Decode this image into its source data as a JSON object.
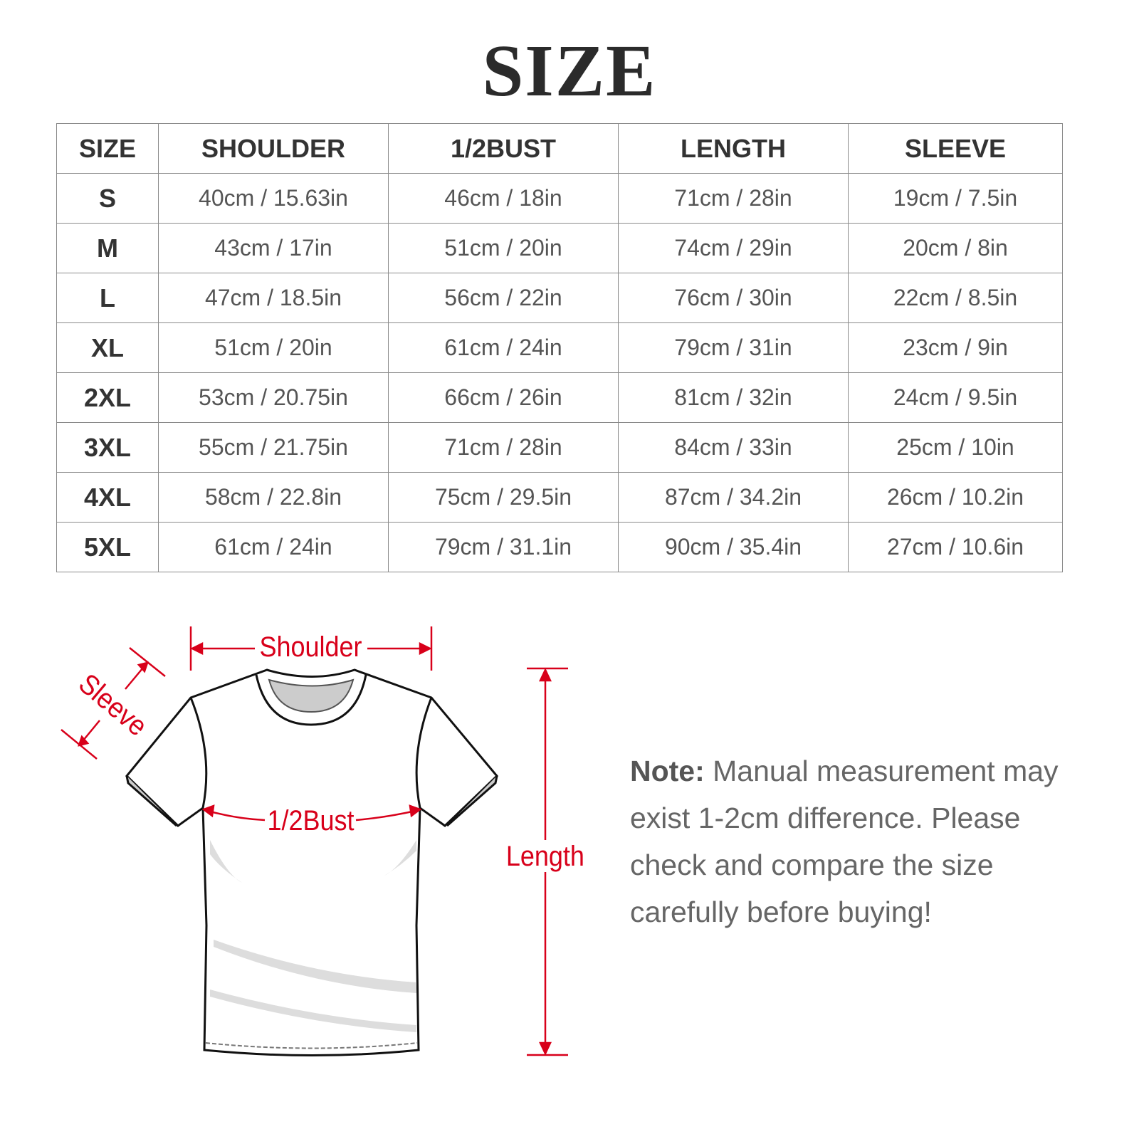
{
  "title": "SIZE",
  "table": {
    "headers": [
      "SIZE",
      "SHOULDER",
      "1/2BUST",
      "LENGTH",
      "SLEEVE"
    ],
    "rows": [
      [
        "S",
        "40cm / 15.63in",
        "46cm / 18in",
        "71cm / 28in",
        "19cm / 7.5in"
      ],
      [
        "M",
        "43cm / 17in",
        "51cm / 20in",
        "74cm / 29in",
        "20cm / 8in"
      ],
      [
        "L",
        "47cm / 18.5in",
        "56cm / 22in",
        "76cm / 30in",
        "22cm / 8.5in"
      ],
      [
        "XL",
        "51cm / 20in",
        "61cm / 24in",
        "79cm / 31in",
        "23cm / 9in"
      ],
      [
        "2XL",
        "53cm / 20.75in",
        "66cm / 26in",
        "81cm / 32in",
        "24cm / 9.5in"
      ],
      [
        "3XL",
        "55cm / 21.75in",
        "71cm / 28in",
        "84cm / 33in",
        "25cm / 10in"
      ],
      [
        "4XL",
        "58cm / 22.8in",
        "75cm / 29.5in",
        "87cm / 34.2in",
        "26cm / 10.2in"
      ],
      [
        "5XL",
        "61cm / 24in",
        "79cm / 31.1in",
        "90cm / 35.4in",
        "27cm / 10.6in"
      ]
    ]
  },
  "diagram": {
    "shoulder": "Shoulder",
    "sleeve": "Sleeve",
    "bust": "1/2Bust",
    "length": "Length",
    "accent": "#d8001a"
  },
  "note": {
    "label": "Note:",
    "text": " Manual measurement may exist 1-2cm difference. Please check and compare the size carefully before buying!"
  }
}
